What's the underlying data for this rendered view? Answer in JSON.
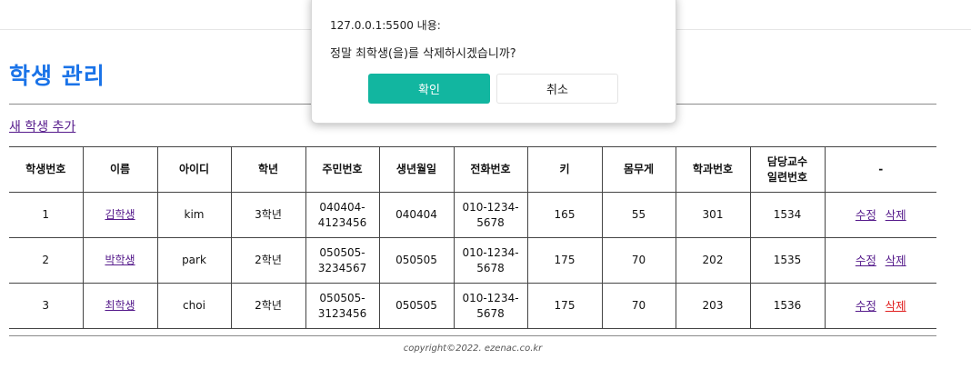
{
  "page": {
    "title": "학생 관리",
    "add_link": "새 학생 추가",
    "footer": "copyright©2022. ezenac.co.kr"
  },
  "table": {
    "headers": [
      "학생번호",
      "이름",
      "아이디",
      "학년",
      "주민번호",
      "생년월일",
      "전화번호",
      "키",
      "몸무게",
      "학과번호",
      "담당교수\n일련번호",
      "-"
    ],
    "rows": [
      {
        "no": "1",
        "name": "김학생",
        "id": "kim",
        "grade": "3학년",
        "jumin": "040404-\n4123456",
        "birth": "040404",
        "phone": "010-1234-\n5678",
        "height": "165",
        "weight": "55",
        "dept": "301",
        "prof": "1534"
      },
      {
        "no": "2",
        "name": "박학생",
        "id": "park",
        "grade": "2학년",
        "jumin": "050505-\n3234567",
        "birth": "050505",
        "phone": "010-1234-\n5678",
        "height": "175",
        "weight": "70",
        "dept": "202",
        "prof": "1535"
      },
      {
        "no": "3",
        "name": "최학생",
        "id": "choi",
        "grade": "2학년",
        "jumin": "050505-\n3123456",
        "birth": "050505",
        "phone": "010-1234-\n5678",
        "height": "175",
        "weight": "70",
        "dept": "203",
        "prof": "1536"
      }
    ],
    "edit_label": "수정",
    "delete_label": "삭제"
  },
  "dialog": {
    "origin": "127.0.0.1:5500 내용:",
    "message": "정말 최학생(을)를 삭제하시겠습니까?",
    "ok_label": "확인",
    "cancel_label": "취소"
  },
  "colors": {
    "title": "#1a73e8",
    "ok_button": "#12b6a0",
    "active_delete": "#e02020",
    "visited_link": "#551a8b"
  }
}
